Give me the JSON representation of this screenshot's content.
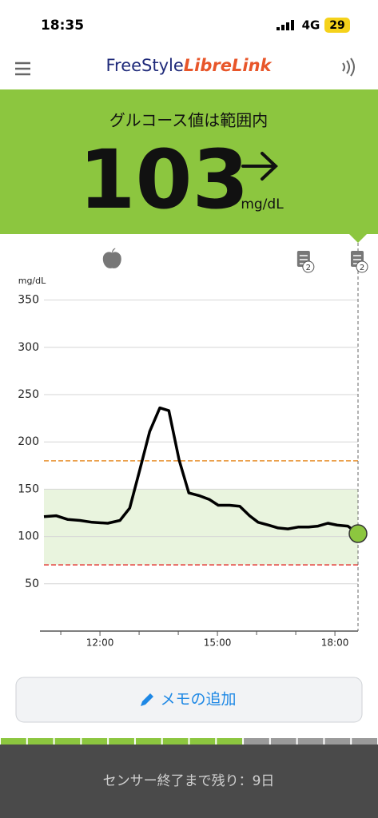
{
  "status_bar": {
    "time": "18:35",
    "network": "4G",
    "battery": "29"
  },
  "header": {
    "logo_part1": "FreeStyle",
    "logo_part2": "LibreLink"
  },
  "banner": {
    "status": "グルコース値は範囲内",
    "value": 103,
    "unit": "mg/dL"
  },
  "chart_data": {
    "type": "line",
    "y_label": "mg/dL",
    "x": [
      10.57,
      10.88,
      11.18,
      11.49,
      11.8,
      12.2,
      12.51,
      12.76,
      13.02,
      13.27,
      13.53,
      13.76,
      14.02,
      14.27,
      14.55,
      14.8,
      15.02,
      15.31,
      15.57,
      15.82,
      16.04,
      16.31,
      16.55,
      16.8,
      17.06,
      17.33,
      17.57,
      17.82,
      18.06,
      18.33,
      18.59
    ],
    "values": [
      121,
      122,
      118,
      117,
      115,
      114,
      117,
      130,
      171,
      211,
      236,
      233,
      181,
      146,
      143,
      139,
      133,
      133,
      132,
      122,
      115,
      112,
      109,
      108,
      110,
      110,
      111,
      114,
      112,
      111,
      103
    ],
    "line_color": "#000000",
    "current_marker_color": "#8cc63f",
    "xlim": [
      10.57,
      18.59
    ],
    "ylim": [
      0,
      375
    ],
    "xticks": [
      {
        "value": 12,
        "label": "12:00"
      },
      {
        "value": 15,
        "label": "15:00"
      },
      {
        "value": 18,
        "label": "18:00"
      }
    ],
    "minor_xticks": [
      11,
      13,
      14,
      16,
      17
    ],
    "yticks": [
      50,
      100,
      150,
      200,
      250,
      300,
      350
    ],
    "grid": true,
    "target_band": [
      70,
      150
    ],
    "target_band_color": "#e9f4de",
    "high_line": 180,
    "high_line_color": "#e8912e",
    "low_line": 70,
    "low_line_color": "#e53935",
    "food_events_x": [
      12.31
    ],
    "note_events": [
      {
        "x": 17.22,
        "count": 2
      },
      {
        "x": 18.59,
        "count": 2
      }
    ]
  },
  "button": {
    "label": "メモの追加"
  },
  "sensor": {
    "total": 14,
    "filled": 9,
    "remaining_text": "センサー終了まで残り：9日"
  }
}
